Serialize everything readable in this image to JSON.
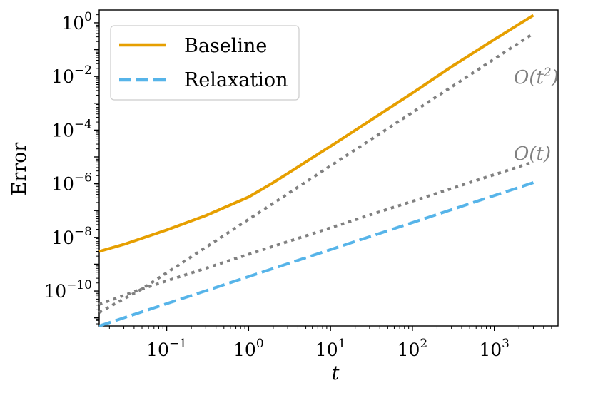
{
  "chart_data": {
    "type": "line",
    "xscale": "log",
    "yscale": "log",
    "xlabel": "t",
    "ylabel": "Error",
    "xlim": [
      0.015,
      6000
    ],
    "ylim": [
      5e-12,
      3
    ],
    "x_ticks": [
      {
        "value": 0.1,
        "label": "10",
        "exp": "−1"
      },
      {
        "value": 1,
        "label": "10",
        "exp": "0"
      },
      {
        "value": 10,
        "label": "10",
        "exp": "1"
      },
      {
        "value": 100,
        "label": "10",
        "exp": "2"
      },
      {
        "value": 1000,
        "label": "10",
        "exp": "3"
      }
    ],
    "y_ticks": [
      {
        "value": 1,
        "label": "10",
        "exp": "0"
      },
      {
        "value": 0.01,
        "label": "10",
        "exp": "−2"
      },
      {
        "value": 0.0001,
        "label": "10",
        "exp": "−4"
      },
      {
        "value": 1e-06,
        "label": "10",
        "exp": "−6"
      },
      {
        "value": 1e-08,
        "label": "10",
        "exp": "−8"
      },
      {
        "value": 1e-10,
        "label": "10",
        "exp": "−10"
      }
    ],
    "legend_position": "top-left",
    "series": [
      {
        "name": "Baseline",
        "legend": true,
        "color": "#E69F00",
        "style": "solid",
        "x": [
          0.015,
          0.03,
          0.1,
          0.3,
          1,
          2,
          5,
          10,
          30,
          100,
          300,
          1000,
          3000
        ],
        "y": [
          3e-09,
          5.5e-09,
          1.9e-08,
          6.5e-08,
          3.2e-07,
          1.1e-06,
          6.5e-06,
          2.5e-05,
          0.00022,
          0.0024,
          0.023,
          0.24,
          1.9
        ]
      },
      {
        "name": "Relaxation",
        "legend": true,
        "color": "#56B4E9",
        "style": "dashed",
        "x": [
          0.015,
          3000
        ],
        "y": [
          5e-12,
          1.1e-06
        ]
      },
      {
        "name": "O(t^2) reference",
        "legend": false,
        "color": "#808080",
        "style": "dotted",
        "x": [
          0.015,
          0.05,
          3000
        ],
        "y": [
          1.6e-11,
          1.2e-10,
          0.4
        ]
      },
      {
        "name": "O(t) reference",
        "legend": false,
        "color": "#808080",
        "style": "dotted",
        "x": [
          0.015,
          0.05,
          3000
        ],
        "y": [
          3.2e-11,
          1.2e-10,
          6.5e-06
        ]
      }
    ],
    "annotations": [
      {
        "text": "O(t",
        "sup": "2",
        "close": ")",
        "x": 700,
        "y": 0.022
      },
      {
        "text": "O(t)",
        "sup": "",
        "close": "",
        "x": 600,
        "y": 1.2e-05
      }
    ]
  }
}
